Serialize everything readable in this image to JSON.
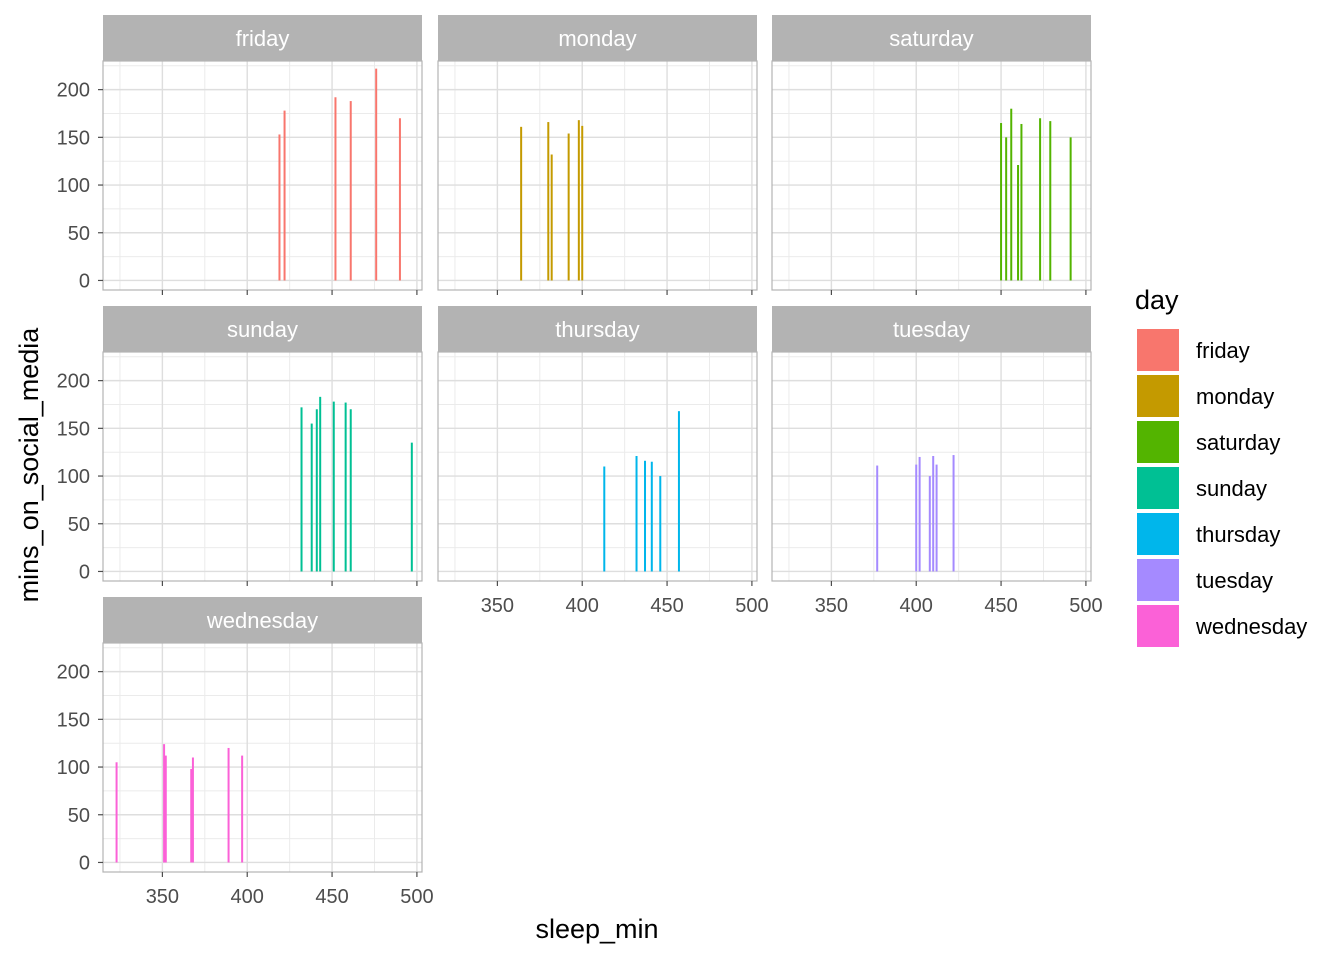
{
  "chart_data": {
    "type": "bar",
    "layout": "facet_wrap",
    "xlabel": "sleep_min",
    "ylabel": "mins_on_social_media",
    "x_ticks": [
      350,
      400,
      450,
      500
    ],
    "y_ticks": [
      0,
      50,
      100,
      150,
      200
    ],
    "xlim": [
      315,
      503
    ],
    "ylim": [
      -10,
      230
    ],
    "grid": true,
    "legend": {
      "title": "day",
      "position": "right",
      "entries": [
        "friday",
        "monday",
        "saturday",
        "sunday",
        "thursday",
        "tuesday",
        "wednesday"
      ]
    },
    "colors": {
      "friday": "#F8766D",
      "monday": "#C49A00",
      "saturday": "#53B400",
      "sunday": "#00C094",
      "thursday": "#00B6EB",
      "tuesday": "#A58AFF",
      "wednesday": "#FB61D7"
    },
    "series": [
      {
        "name": "friday",
        "x": [
          419,
          422,
          452,
          461,
          476,
          490
        ],
        "values": [
          153,
          178,
          192,
          188,
          222,
          170
        ]
      },
      {
        "name": "monday",
        "x": [
          364,
          380,
          382,
          392,
          398,
          400
        ],
        "values": [
          161,
          166,
          132,
          154,
          168,
          162
        ]
      },
      {
        "name": "saturday",
        "x": [
          450,
          453,
          456,
          460,
          462,
          473,
          479,
          491
        ],
        "values": [
          165,
          150,
          180,
          121,
          164,
          170,
          167,
          150
        ]
      },
      {
        "name": "sunday",
        "x": [
          432,
          438,
          441,
          443,
          451,
          458,
          461,
          497
        ],
        "values": [
          172,
          155,
          170,
          183,
          178,
          177,
          170,
          135
        ]
      },
      {
        "name": "thursday",
        "x": [
          413,
          432,
          437,
          441,
          446,
          457
        ],
        "values": [
          110,
          121,
          116,
          115,
          100,
          168
        ]
      },
      {
        "name": "tuesday",
        "x": [
          377,
          400,
          402,
          408,
          410,
          412,
          422
        ],
        "values": [
          111,
          112,
          120,
          100,
          121,
          112,
          122
        ]
      },
      {
        "name": "wednesday",
        "x": [
          323,
          351,
          352,
          367,
          368,
          389,
          397
        ],
        "values": [
          105,
          124,
          112,
          98,
          110,
          120,
          112
        ]
      }
    ]
  }
}
